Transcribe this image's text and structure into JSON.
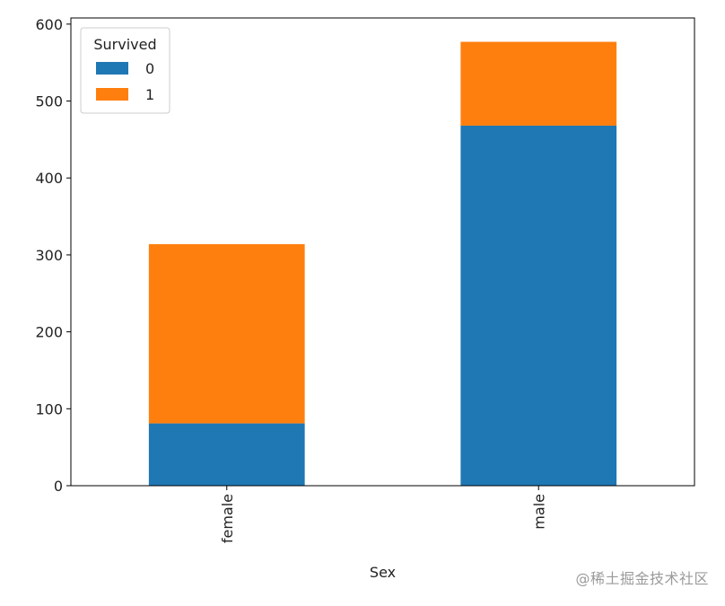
{
  "chart_data": {
    "type": "bar",
    "stacked": true,
    "categories": [
      "female",
      "male"
    ],
    "series": [
      {
        "name": "0",
        "values": [
          81,
          468
        ],
        "color": "#1f77b4"
      },
      {
        "name": "1",
        "values": [
          233,
          109
        ],
        "color": "#ff7f0e"
      }
    ],
    "xlabel": "Sex",
    "ylabel": "",
    "ylim": [
      0,
      608
    ],
    "yticks": [
      0,
      100,
      200,
      300,
      400,
      500,
      600
    ],
    "xtick_rotation": 90,
    "grid": false,
    "legend": {
      "title": "Survived",
      "placement": "top-left"
    }
  },
  "watermark": "@稀土掘金技术社区"
}
